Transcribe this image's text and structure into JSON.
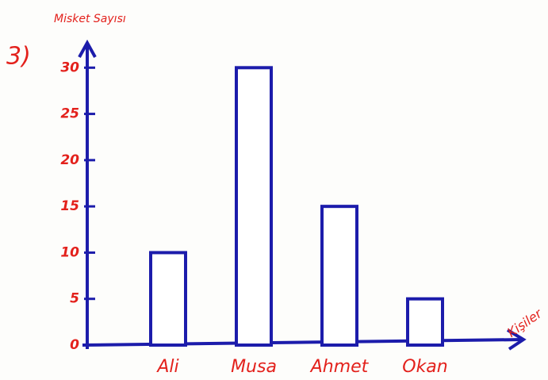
{
  "chart_data": {
    "type": "bar",
    "problem_number": "3)",
    "y_label": "Misket Sayısı",
    "x_label": "Kişiler",
    "categories": [
      "Ali",
      "Musa",
      "Ahmet",
      "Okan"
    ],
    "values": [
      10,
      30,
      15,
      5
    ],
    "color": "#1c1cab",
    "label_color": "#e3211c",
    "ylim": [
      0,
      32
    ],
    "yticks": [
      0,
      5,
      10,
      15,
      20,
      25,
      30
    ],
    "grid": false
  }
}
